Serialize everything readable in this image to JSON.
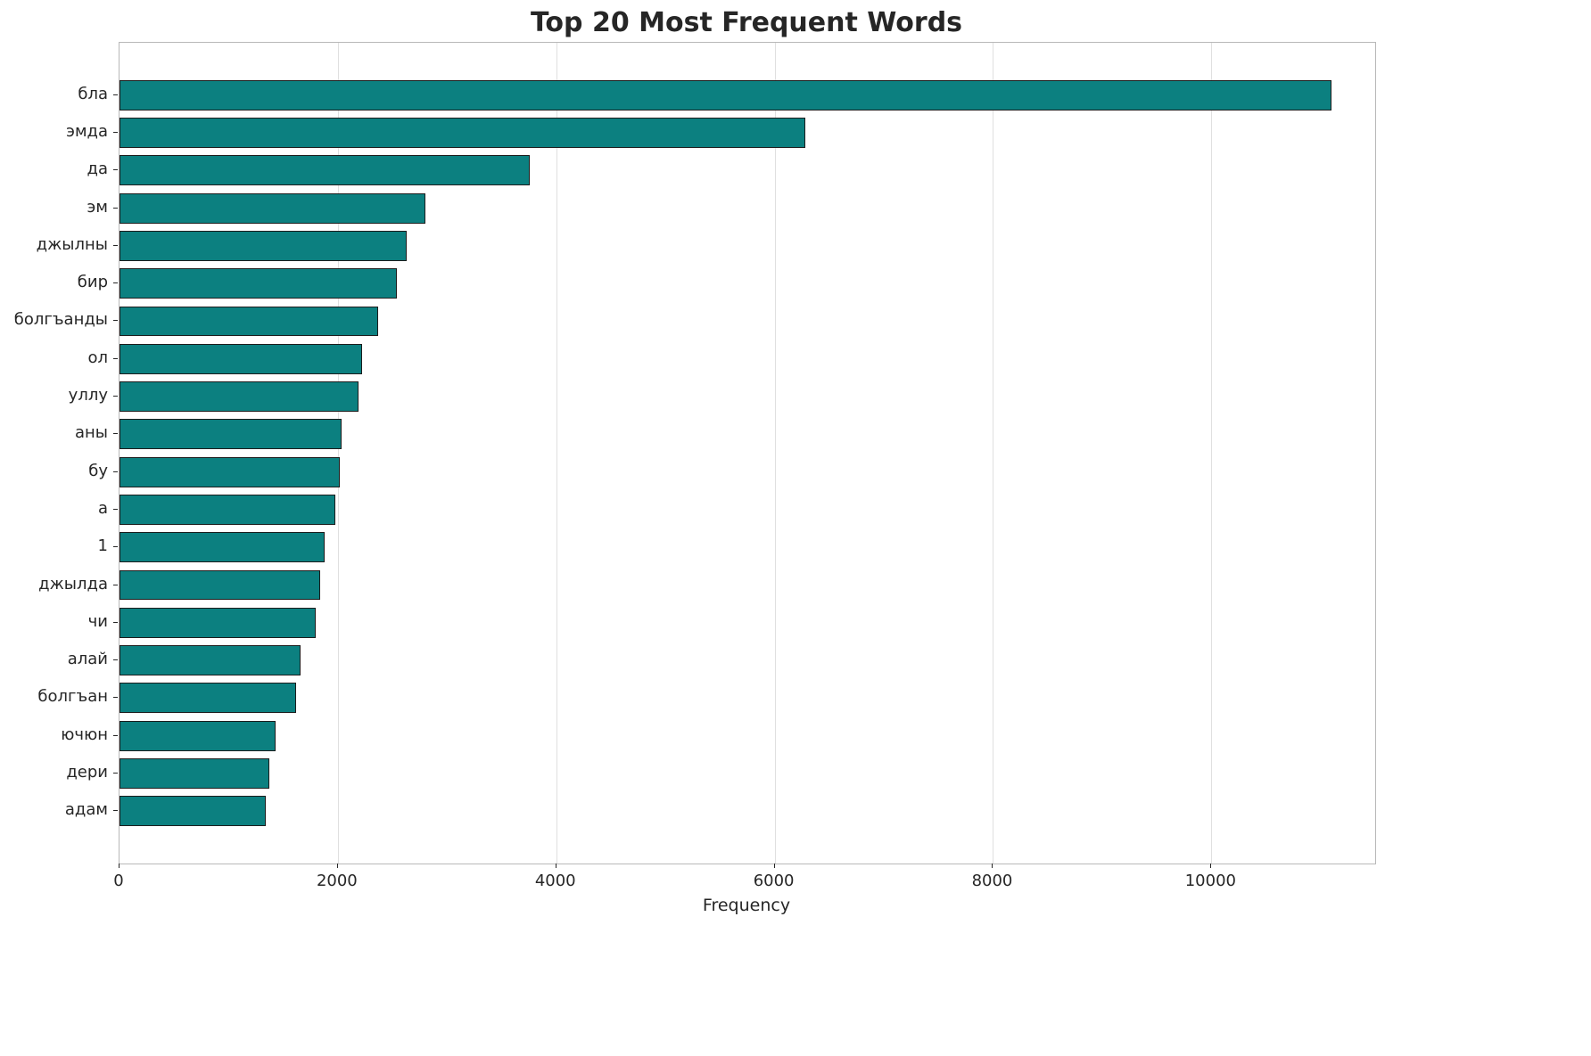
{
  "chart_data": {
    "type": "bar",
    "orientation": "horizontal",
    "title": "Top 20 Most Frequent Words",
    "xlabel": "Frequency",
    "ylabel": "",
    "categories": [
      "бла",
      "эмда",
      "да",
      "эм",
      "джылны",
      "бир",
      "болгъанды",
      "ол",
      "уллу",
      "аны",
      "бу",
      "а",
      "1",
      "джылда",
      "чи",
      "алай",
      "болгъан",
      "ючюн",
      "дери",
      "адам"
    ],
    "values": [
      11100,
      6280,
      3760,
      2800,
      2630,
      2540,
      2370,
      2220,
      2190,
      2030,
      2020,
      1980,
      1880,
      1840,
      1800,
      1660,
      1620,
      1430,
      1370,
      1340
    ],
    "xlim": [
      0,
      11500
    ],
    "xticks": [
      0,
      2000,
      4000,
      6000,
      8000,
      10000
    ],
    "grid": true,
    "legend": "none",
    "bar_color": "#0c8080",
    "bar_edge_color": "#1c1c1c",
    "grid_color": "#e0e0e0",
    "background": "#ffffff"
  }
}
